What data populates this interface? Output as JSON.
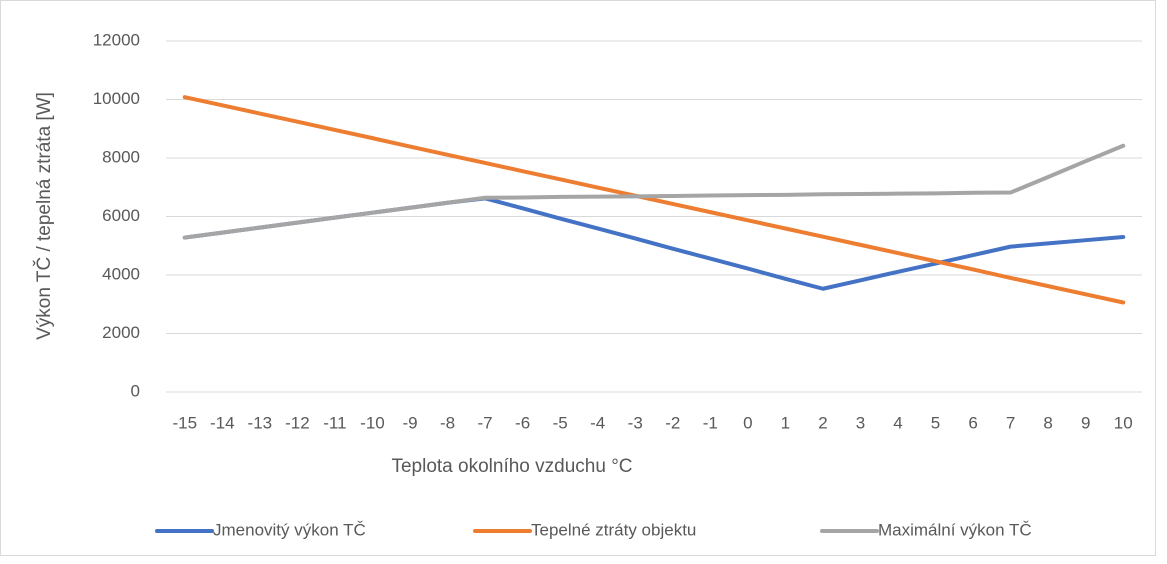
{
  "chart_data": {
    "type": "line",
    "x_label": "Teplota okolního vzduchu °C",
    "y_label": "Výkon TČ / tepelná ztráta [W]",
    "categories": [
      -15,
      -14,
      -13,
      -12,
      -11,
      -10,
      -9,
      -8,
      -7,
      -6,
      -5,
      -4,
      -3,
      -2,
      -1,
      0,
      1,
      2,
      3,
      4,
      5,
      6,
      7,
      8,
      9,
      10
    ],
    "series": [
      {
        "name": "Jmenovitý výkon TČ",
        "color": "#4472c4",
        "values": [
          5280,
          5450,
          5620,
          5790,
          5960,
          6130,
          6300,
          6470,
          6620,
          6280,
          5930,
          5590,
          5250,
          4900,
          4560,
          4220,
          3870,
          3530,
          3820,
          4110,
          4390,
          4680,
          4970,
          5080,
          5190,
          5300
        ]
      },
      {
        "name": "Tepelné ztráty objektu",
        "color": "#ed7d31",
        "values": [
          10080,
          9800,
          9520,
          9240,
          8960,
          8680,
          8390,
          8110,
          7830,
          7550,
          7270,
          6990,
          6710,
          6430,
          6150,
          5870,
          5590,
          5310,
          5030,
          4750,
          4470,
          4190,
          3900,
          3620,
          3340,
          3060
        ]
      },
      {
        "name": "Maximální výkon TČ",
        "color": "#a5a5a5",
        "values": [
          5280,
          5450,
          5620,
          5790,
          5960,
          6130,
          6300,
          6470,
          6640,
          6650,
          6670,
          6680,
          6690,
          6700,
          6720,
          6730,
          6740,
          6760,
          6770,
          6780,
          6790,
          6810,
          6820,
          7350,
          7890,
          8420
        ]
      }
    ],
    "ylim": [
      0,
      12000
    ],
    "yticks": [
      0,
      2000,
      4000,
      6000,
      8000,
      10000,
      12000
    ],
    "grid": true,
    "legend": "bottom"
  }
}
